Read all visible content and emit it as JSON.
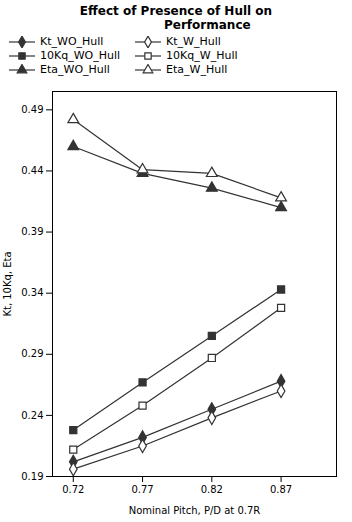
{
  "chart_data": {
    "type": "line",
    "title": "Effect of Presence of Hull on\n               Performance",
    "xlabel": "Nominal Pitch, P/D at 0.7R",
    "ylabel": "Kt, 10Kq, Eta",
    "x": [
      0.72,
      0.77,
      0.82,
      0.87
    ],
    "series": [
      {
        "name": "Kt_WO_Hull",
        "color": "#333333",
        "marker": "diamond",
        "values": [
          0.202,
          0.222,
          0.245,
          0.268
        ]
      },
      {
        "name": "10Kq_WO_Hull",
        "color": "#333333",
        "marker": "square",
        "values": [
          0.228,
          0.267,
          0.305,
          0.343
        ]
      },
      {
        "name": "Eta_WO_Hull",
        "color": "#333333",
        "marker": "triangle",
        "values": [
          0.46,
          0.438,
          0.426,
          0.41
        ]
      },
      {
        "name": "Kt_W_Hull",
        "color": "#333333",
        "marker": "diamond-open",
        "values": [
          0.196,
          0.215,
          0.238,
          0.26
        ]
      },
      {
        "name": "10Kq_W_Hull",
        "color": "#333333",
        "marker": "square-open",
        "values": [
          0.212,
          0.248,
          0.287,
          0.328
        ]
      },
      {
        "name": "Eta_W_Hull",
        "color": "#333333",
        "marker": "triangle-open",
        "values": [
          0.482,
          0.441,
          0.438,
          0.418
        ]
      }
    ],
    "xlim": [
      0.705,
      0.91
    ],
    "ylim": [
      0.19,
      0.505
    ],
    "xticks": [
      0.72,
      0.77,
      0.82,
      0.87
    ],
    "yticks": [
      0.19,
      0.24,
      0.29,
      0.34,
      0.39,
      0.44,
      0.49
    ],
    "grid": false,
    "legend": "upper left"
  }
}
